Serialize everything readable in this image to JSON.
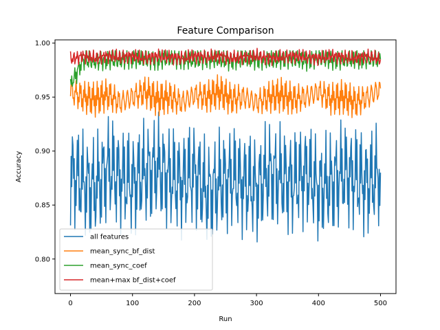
{
  "chart_data": {
    "type": "line",
    "title": "Feature Comparison",
    "xlabel": "Run",
    "ylabel": "Accuracy",
    "xlim": [
      -25,
      525
    ],
    "ylim": [
      0.768,
      1.003
    ],
    "xticks": [
      0,
      100,
      200,
      300,
      400,
      500
    ],
    "yticks": [
      0.8,
      0.85,
      0.9,
      0.95,
      1.0
    ],
    "ytick_labels": [
      "0.80",
      "0.85",
      "0.90",
      "0.95",
      "1.00"
    ],
    "grid": false,
    "legend_position": "lower-left",
    "x": [
      0,
      20,
      40,
      60,
      80,
      100,
      120,
      140,
      160,
      180,
      200,
      220,
      240,
      260,
      280,
      300,
      320,
      340,
      360,
      380,
      400,
      420,
      440,
      460,
      480,
      500
    ],
    "series": [
      {
        "name": "all features",
        "color": "#1f77b4",
        "values": [
          0.88,
          0.87,
          0.865,
          0.885,
          0.875,
          0.87,
          0.88,
          0.885,
          0.875,
          0.87,
          0.88,
          0.86,
          0.87,
          0.875,
          0.87,
          0.865,
          0.88,
          0.875,
          0.87,
          0.88,
          0.865,
          0.87,
          0.88,
          0.875,
          0.87,
          0.88
        ],
        "min": 0.778,
        "max": 0.943
      },
      {
        "name": "mean_sync_bf_dist",
        "color": "#ff7f0e",
        "values": [
          0.955,
          0.95,
          0.948,
          0.952,
          0.945,
          0.95,
          0.955,
          0.948,
          0.95,
          0.945,
          0.952,
          0.95,
          0.955,
          0.948,
          0.95,
          0.945,
          0.95,
          0.952,
          0.948,
          0.95,
          0.955,
          0.948,
          0.95,
          0.945,
          0.95,
          0.958
        ],
        "min": 0.92,
        "max": 0.972
      },
      {
        "name": "mean_sync_coef",
        "color": "#2ca02c",
        "values": [
          0.96,
          0.985,
          0.983,
          0.985,
          0.984,
          0.986,
          0.985,
          0.984,
          0.986,
          0.985,
          0.984,
          0.986,
          0.985,
          0.984,
          0.986,
          0.985,
          0.984,
          0.986,
          0.985,
          0.984,
          0.986,
          0.985,
          0.984,
          0.986,
          0.985,
          0.985
        ],
        "min": 0.96,
        "max": 0.993
      },
      {
        "name": "mean+max bf_dist+coef",
        "color": "#d62728",
        "values": [
          0.985,
          0.988,
          0.986,
          0.988,
          0.987,
          0.988,
          0.986,
          0.988,
          0.987,
          0.986,
          0.988,
          0.987,
          0.988,
          0.986,
          0.987,
          0.988,
          0.986,
          0.987,
          0.988,
          0.987,
          0.986,
          0.988,
          0.987,
          0.986,
          0.988,
          0.985
        ],
        "min": 0.975,
        "max": 0.998
      }
    ]
  }
}
